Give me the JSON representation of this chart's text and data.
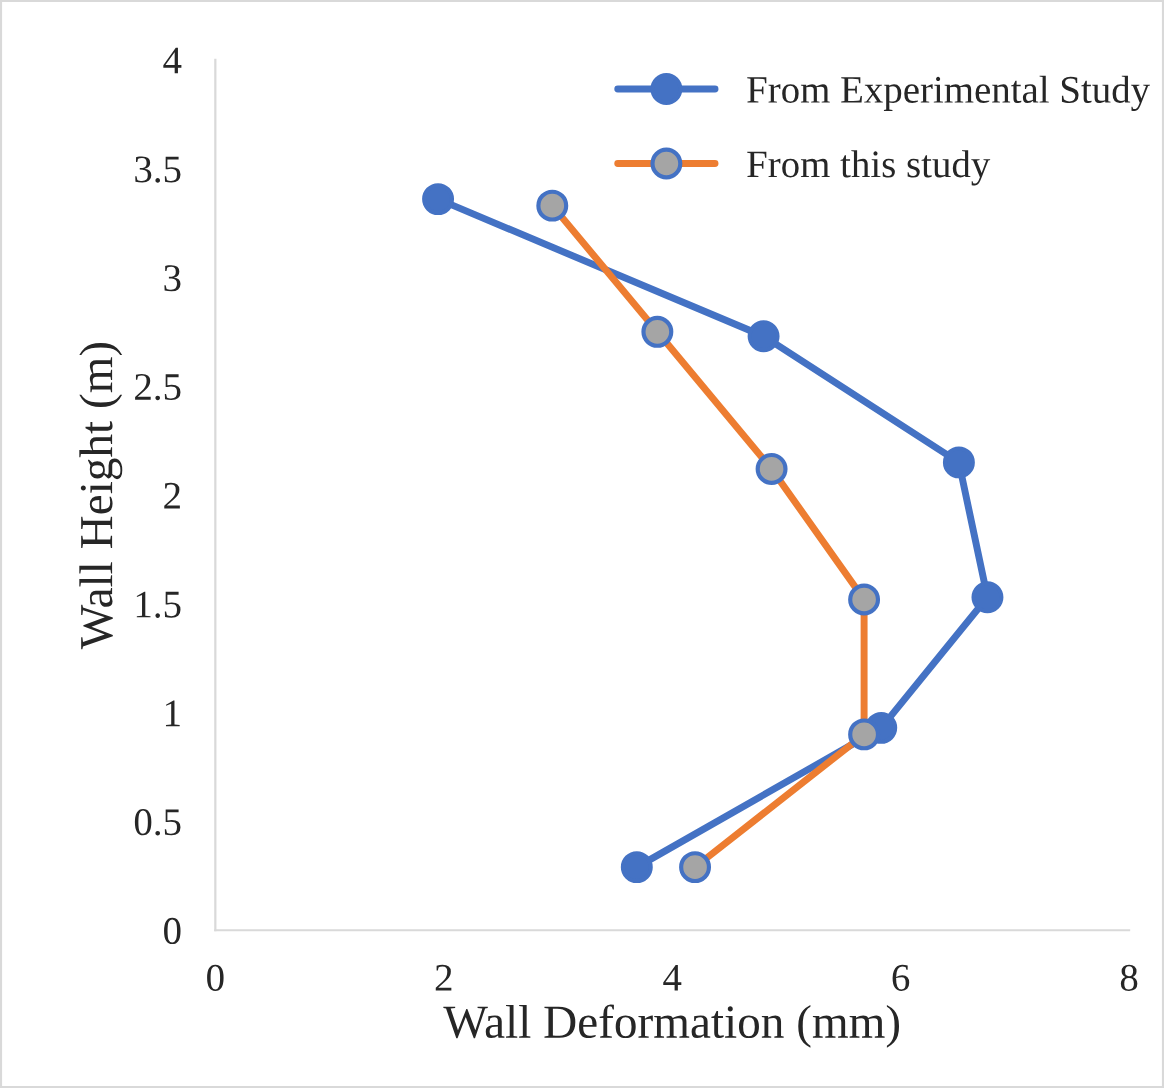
{
  "chart_data": {
    "type": "line",
    "xlabel": "Wall Deformation (mm)",
    "ylabel": "Wall Height (m)",
    "xlim": [
      0,
      8
    ],
    "xticks": [
      0,
      2,
      4,
      6,
      8
    ],
    "ylim": [
      0,
      4
    ],
    "yticks": [
      0,
      0.5,
      1,
      1.5,
      2,
      2.5,
      3,
      3.5,
      4
    ],
    "grid": false,
    "legend": "top right",
    "marker": "circle",
    "line_style": "solid",
    "series": [
      {
        "name": "From Experimental Study",
        "color": "#4472c4",
        "x": [
          1.95,
          4.8,
          6.51,
          6.76,
          5.83,
          3.69
        ],
        "values": [
          3.36,
          2.73,
          2.15,
          1.53,
          0.93,
          0.29
        ]
      },
      {
        "name": "From this study",
        "color": "#ed7d31",
        "x": [
          2.95,
          3.87,
          4.87,
          5.68,
          5.68,
          4.2
        ],
        "values": [
          3.33,
          2.75,
          2.12,
          1.52,
          0.9,
          0.29
        ]
      }
    ]
  }
}
